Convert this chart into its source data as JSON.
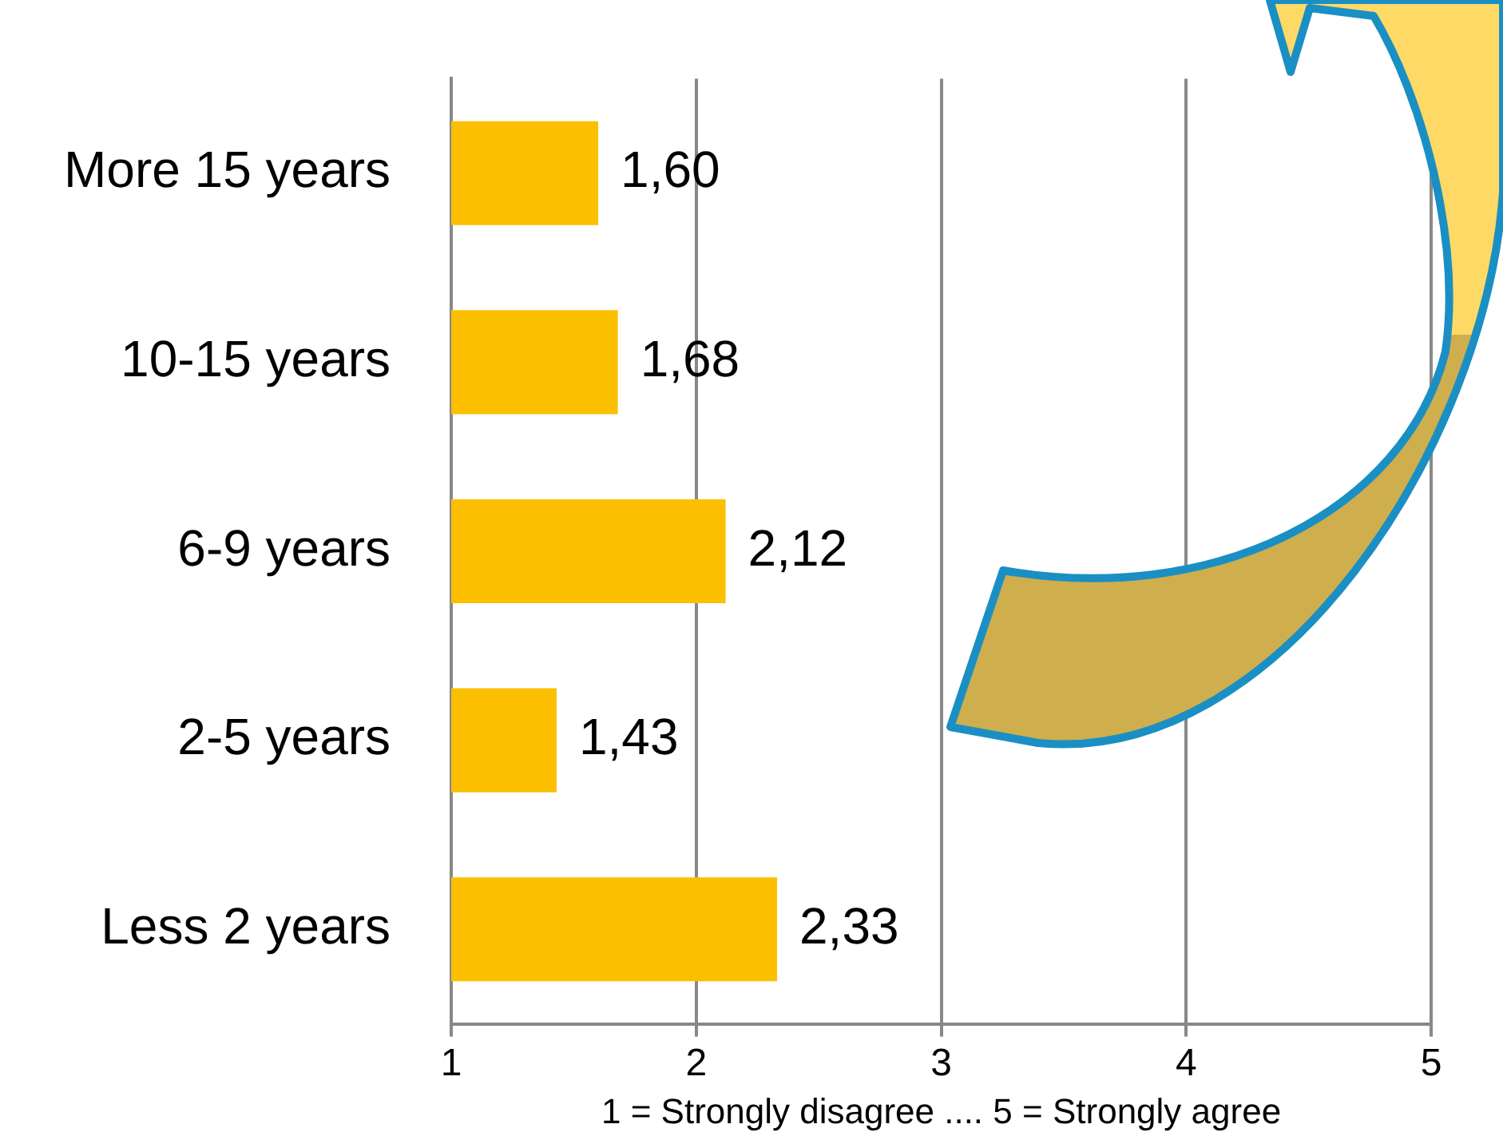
{
  "chart_data": {
    "type": "bar",
    "orientation": "horizontal",
    "categories": [
      "More 15 years",
      "10-15 years",
      "6-9 years",
      "2-5 years",
      "Less 2 years"
    ],
    "values": [
      1.6,
      1.68,
      2.12,
      1.43,
      2.33
    ],
    "value_labels": [
      "1,60",
      "1,68",
      "2,12",
      "1,43",
      "2,33"
    ],
    "color": "#fbbf00",
    "xlim": [
      1,
      5
    ],
    "xticks": [
      1,
      2,
      3,
      4,
      5
    ],
    "grid": "x",
    "legend": false,
    "xlabel": "1 = Strongly disagree .... 5 = Strongly agree"
  }
}
